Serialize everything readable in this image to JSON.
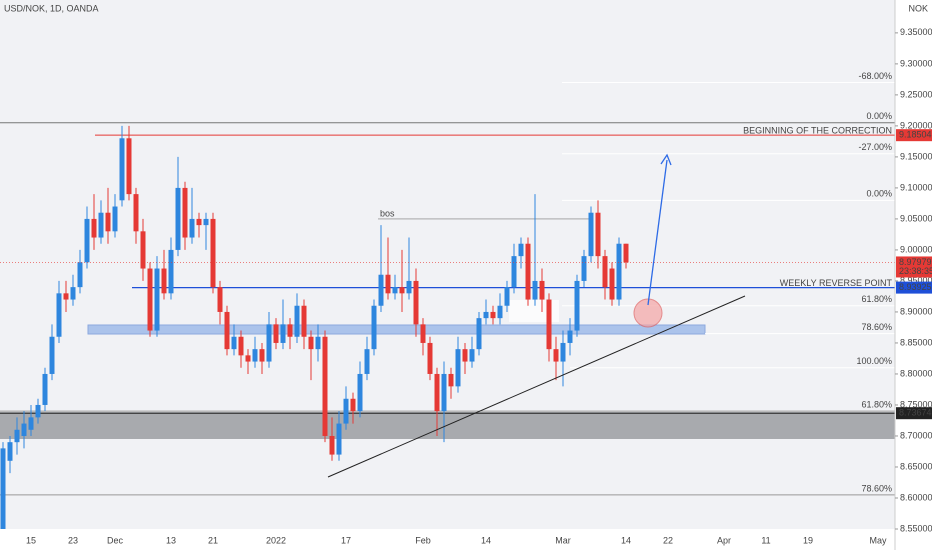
{
  "chart_data": {
    "type": "candlestick",
    "title": "USD/NOK, 1D, OANDA",
    "currency": "NOK",
    "up_color": "#2e86de",
    "down_color": "#e53935",
    "categories": [
      null,
      null,
      null,
      null,
      "15",
      null,
      null,
      null,
      null,
      null,
      "23",
      null,
      null,
      null,
      null,
      null,
      "Dec",
      null,
      null,
      null,
      null,
      null,
      null,
      null,
      "13",
      null,
      null,
      null,
      null,
      null,
      "21",
      null,
      null,
      null,
      null,
      null,
      null,
      null,
      null,
      "2022",
      null,
      null,
      null,
      null,
      null,
      null,
      null,
      null,
      null,
      "17",
      null,
      null,
      null,
      null,
      null,
      null,
      null,
      null,
      null,
      null,
      "Feb",
      null,
      null,
      null,
      null,
      null,
      null,
      null,
      null,
      "14",
      null,
      null,
      null,
      null,
      null,
      null,
      null,
      null,
      null,
      null,
      "Mar",
      null,
      null,
      null,
      null,
      null,
      null,
      null,
      null,
      "14",
      null,
      null,
      null,
      null,
      null,
      "22",
      null,
      null,
      null,
      null,
      null,
      null,
      null,
      "Apr",
      null,
      null,
      null,
      null,
      null,
      "11",
      null,
      null,
      null,
      null,
      null,
      "19",
      null,
      null,
      null,
      null,
      null,
      null,
      null,
      null,
      null,
      "May",
      null,
      null
    ],
    "open": [
      8.55,
      8.66,
      8.69,
      8.7,
      8.71,
      8.73,
      8.75,
      8.8,
      8.86,
      8.93,
      8.92,
      8.94,
      8.98,
      9.05,
      9.02,
      9.06,
      9.03,
      9.08,
      9.18,
      9.09,
      9.03,
      8.97,
      8.87,
      8.97,
      8.93,
      9.0,
      9.1,
      9.02,
      9.05,
      9.04,
      9.05,
      8.94,
      8.9,
      8.84,
      8.86,
      8.83,
      8.82,
      8.84,
      8.82,
      8.88,
      8.85,
      8.88,
      8.86,
      8.91,
      8.86,
      8.84,
      8.86,
      8.7,
      8.67,
      8.72,
      8.76,
      8.74,
      8.8,
      8.84,
      8.91,
      8.96,
      8.93,
      8.94,
      8.93,
      8.95,
      8.88,
      8.85,
      8.8,
      8.74,
      8.8,
      8.78,
      8.84,
      8.82,
      8.84,
      8.89,
      8.9,
      8.89,
      8.91,
      8.94,
      8.99,
      9.01,
      8.92,
      8.95,
      8.92,
      8.84,
      8.82,
      8.85,
      8.87,
      8.95,
      8.99,
      9.06,
      8.99,
      8.97,
      8.92,
      9.01,
      null,
      null,
      null,
      null,
      null,
      null,
      null,
      null,
      null,
      null,
      null,
      null,
      null,
      null,
      null,
      null,
      null,
      null,
      null,
      null,
      null,
      null,
      null,
      null,
      null,
      null,
      null,
      null,
      null,
      null,
      null,
      null,
      null,
      null,
      null,
      null,
      null,
      null
    ],
    "high": [
      8.69,
      8.7,
      8.73,
      8.74,
      8.75,
      8.76,
      8.81,
      8.88,
      8.95,
      8.95,
      8.96,
      9.0,
      9.07,
      9.09,
      9.08,
      9.1,
      9.09,
      9.2,
      9.2,
      9.1,
      9.05,
      8.98,
      8.99,
      9.0,
      9.02,
      9.15,
      9.11,
      9.1,
      9.06,
      9.06,
      9.06,
      8.95,
      8.91,
      8.88,
      8.87,
      8.84,
      8.86,
      8.85,
      8.9,
      8.89,
      8.92,
      8.89,
      8.93,
      8.92,
      8.87,
      8.88,
      8.87,
      8.73,
      8.74,
      8.78,
      8.77,
      8.82,
      8.86,
      8.92,
      9.04,
      9.02,
      8.96,
      9.0,
      9.02,
      8.97,
      8.89,
      8.86,
      8.81,
      8.82,
      8.81,
      8.86,
      8.85,
      8.86,
      8.9,
      8.92,
      8.91,
      8.93,
      8.95,
      9.01,
      9.02,
      9.02,
      9.09,
      8.97,
      8.93,
      8.86,
      8.87,
      8.89,
      8.96,
      9.0,
      9.07,
      9.08,
      9.0,
      8.98,
      9.02,
      9.01,
      null,
      null,
      null,
      null,
      null,
      null,
      null,
      null,
      null,
      null,
      null,
      null,
      null,
      null,
      null,
      null,
      null,
      null,
      null,
      null,
      null,
      null,
      null,
      null,
      null,
      null,
      null,
      null,
      null,
      null,
      null,
      null,
      null,
      null,
      null,
      null,
      null,
      null
    ],
    "low": [
      8.55,
      8.64,
      8.67,
      8.68,
      8.7,
      8.72,
      8.74,
      8.79,
      8.85,
      8.9,
      8.91,
      8.93,
      8.97,
      9.0,
      9.01,
      9.01,
      9.02,
      9.07,
      9.08,
      9.01,
      8.95,
      8.86,
      8.86,
      8.92,
      8.92,
      8.99,
      9.0,
      9.01,
      9.02,
      9.0,
      8.93,
      8.88,
      8.83,
      8.83,
      8.81,
      8.8,
      8.81,
      8.8,
      8.81,
      8.84,
      8.84,
      8.84,
      8.85,
      8.84,
      8.79,
      8.82,
      8.69,
      8.66,
      8.66,
      8.71,
      8.72,
      8.73,
      8.79,
      8.83,
      8.9,
      8.92,
      8.92,
      8.9,
      8.92,
      8.86,
      8.83,
      8.79,
      8.7,
      8.69,
      8.76,
      8.77,
      8.8,
      8.81,
      8.83,
      8.88,
      8.88,
      8.88,
      8.9,
      8.93,
      8.97,
      8.91,
      8.91,
      8.9,
      8.82,
      8.79,
      8.78,
      8.83,
      8.86,
      8.94,
      8.98,
      8.97,
      8.92,
      8.91,
      8.91,
      8.97,
      null,
      null,
      null,
      null,
      null,
      null,
      null,
      null,
      null,
      null,
      null,
      null,
      null,
      null,
      null,
      null,
      null,
      null,
      null,
      null,
      null,
      null,
      null,
      null,
      null,
      null,
      null,
      null,
      null,
      null,
      null,
      null,
      null,
      null,
      null,
      null,
      null,
      null
    ],
    "close": [
      8.68,
      8.69,
      8.71,
      8.72,
      8.73,
      8.75,
      8.8,
      8.86,
      8.93,
      8.92,
      8.94,
      8.98,
      9.05,
      9.02,
      9.06,
      9.03,
      9.07,
      9.18,
      9.09,
      9.03,
      8.97,
      8.87,
      8.97,
      8.93,
      9.0,
      9.1,
      9.02,
      9.05,
      9.04,
      9.05,
      8.94,
      8.9,
      8.84,
      8.86,
      8.83,
      8.82,
      8.84,
      8.82,
      8.88,
      8.85,
      8.88,
      8.86,
      8.91,
      8.86,
      8.84,
      8.86,
      8.7,
      8.67,
      8.72,
      8.76,
      8.74,
      8.8,
      8.84,
      8.91,
      8.96,
      8.93,
      8.94,
      8.93,
      8.95,
      8.88,
      8.85,
      8.8,
      8.74,
      8.8,
      8.78,
      8.84,
      8.82,
      8.84,
      8.89,
      8.9,
      8.89,
      8.91,
      8.94,
      8.99,
      9.01,
      8.92,
      8.95,
      8.92,
      8.84,
      8.82,
      8.85,
      8.87,
      8.95,
      8.99,
      9.06,
      8.99,
      8.94,
      8.92,
      9.01,
      8.97979,
      null,
      null,
      null,
      null,
      null,
      null,
      null,
      null,
      null,
      null,
      null,
      null,
      null,
      null,
      null,
      null,
      null,
      null,
      null,
      null,
      null,
      null,
      null,
      null,
      null,
      null,
      null,
      null,
      null,
      null,
      null,
      null,
      null,
      null,
      null,
      null,
      null,
      null
    ],
    "ylim": [
      8.55,
      9.403
    ],
    "yticks": [
      {
        "value": 8.55,
        "label": "8.55000"
      },
      {
        "value": 8.6,
        "label": "8.60000"
      },
      {
        "value": 8.65,
        "label": "8.65000"
      },
      {
        "value": 8.7,
        "label": "8.70000"
      },
      {
        "value": 8.75,
        "label": "8.75000"
      },
      {
        "value": 8.8,
        "label": "8.80000"
      },
      {
        "value": 8.85,
        "label": "8.85000"
      },
      {
        "value": 8.9,
        "label": "8.90000"
      },
      {
        "value": 8.95,
        "label": "8.95000"
      },
      {
        "value": 9.0,
        "label": "9.00000"
      },
      {
        "value": 9.05,
        "label": "9.05000"
      },
      {
        "value": 9.1,
        "label": "9.10000"
      },
      {
        "value": 9.15,
        "label": "9.15000"
      },
      {
        "value": 9.2,
        "label": "9.20000"
      },
      {
        "value": 9.25,
        "label": "9.25000"
      },
      {
        "value": 9.3,
        "label": "9.30000"
      },
      {
        "value": 9.35,
        "label": "9.35000"
      }
    ],
    "levels": [
      {
        "value": 9.18504,
        "text": "BEGINNING OF THE CORRECTION",
        "color": "#e53935"
      },
      {
        "value": 8.93925,
        "text": "WEEKLY REVERSE POINT",
        "color": "#1e4fd8"
      },
      {
        "value": 8.73674,
        "color": "#222222"
      }
    ],
    "countdown": "23:38:35",
    "fib_levels": [
      {
        "value": 9.27,
        "label": "-68.00%"
      },
      {
        "value": 9.205,
        "label": "0.00%"
      },
      {
        "value": 9.155,
        "label": "-27.00%"
      },
      {
        "value": 9.08,
        "label": "0.00%"
      },
      {
        "value": 8.91,
        "label": "61.80%"
      },
      {
        "value": 8.865,
        "label": "78.60%"
      },
      {
        "value": 8.81,
        "label": "100.00%"
      },
      {
        "value": 8.74,
        "label": "61.80%"
      },
      {
        "value": 8.605,
        "label": "78.60%"
      }
    ],
    "bos": {
      "value": 9.05,
      "label": "bos"
    }
  }
}
